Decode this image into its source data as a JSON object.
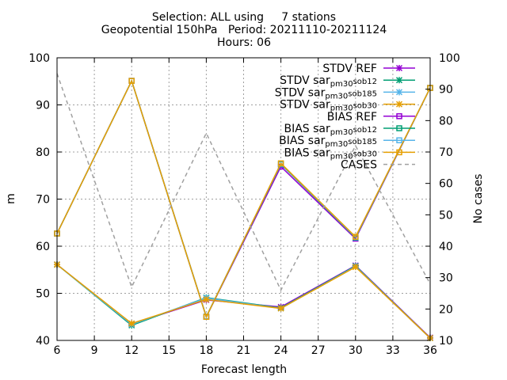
{
  "chart_data": {
    "type": "line",
    "title_lines": [
      "Selection: ALL using     7 stations",
      "Geopotential 150hPa   Period: 20211110-20211124",
      "Hours: 06"
    ],
    "xlabel": "Forecast length",
    "ylabel": "m",
    "y2label": "No cases",
    "x": [
      6,
      12,
      18,
      24,
      30,
      36
    ],
    "xticks": [
      6,
      9,
      12,
      15,
      18,
      21,
      24,
      27,
      30,
      33,
      36
    ],
    "xlim": [
      6,
      36
    ],
    "ylim": [
      40,
      100
    ],
    "yticks": [
      40,
      50,
      60,
      70,
      80,
      90,
      100
    ],
    "y2lim": [
      10,
      100
    ],
    "y2ticks": [
      10,
      20,
      30,
      40,
      50,
      60,
      70,
      80,
      90,
      100
    ],
    "grid": true,
    "legend_position": "top-right",
    "series": [
      {
        "name": "STDV REF",
        "color": "#9400d3",
        "marker": "x",
        "dash": false,
        "axis": "y",
        "values": [
          56.1,
          43.5,
          48.6,
          47.1,
          55.9,
          40.6
        ]
      },
      {
        "name": "STDV sar_pm30_sob12",
        "color": "#009e73",
        "marker": "x",
        "dash": false,
        "axis": "y",
        "values": [
          56.1,
          43.2,
          49.1,
          46.9,
          55.8,
          40.5
        ]
      },
      {
        "name": "STDV sar_pm30_sob185",
        "color": "#56b4e9",
        "marker": "x",
        "dash": false,
        "axis": "y",
        "values": [
          56.1,
          43.4,
          49.0,
          46.8,
          55.7,
          40.5
        ]
      },
      {
        "name": "STDV sar_pm30_sob30",
        "color": "#e69f00",
        "marker": "x",
        "dash": false,
        "axis": "y",
        "values": [
          56.1,
          43.6,
          48.7,
          46.8,
          55.6,
          40.5
        ]
      },
      {
        "name": "BIAS REF",
        "color": "#9400d3",
        "marker": "square",
        "dash": false,
        "axis": "y",
        "values": [
          62.7,
          95.1,
          45.0,
          76.9,
          61.6,
          93.6
        ]
      },
      {
        "name": "BIAS sar_pm30_sob12",
        "color": "#009e73",
        "marker": "square",
        "dash": false,
        "axis": "y",
        "values": [
          62.7,
          95.1,
          45.0,
          77.4,
          61.8,
          93.6
        ]
      },
      {
        "name": "BIAS sar_pm30_sob185",
        "color": "#56b4e9",
        "marker": "square",
        "dash": false,
        "axis": "y",
        "values": [
          62.7,
          95.1,
          45.1,
          77.5,
          61.9,
          93.6
        ]
      },
      {
        "name": "BIAS sar_pm30_sob30",
        "color": "#e69f00",
        "marker": "square",
        "dash": false,
        "axis": "y",
        "values": [
          62.7,
          95.1,
          45.0,
          77.6,
          62.0,
          93.6
        ]
      },
      {
        "name": "CASES",
        "color": "#a0a0a0",
        "marker": "none",
        "dash": true,
        "axis": "y2",
        "values": [
          95,
          27,
          76,
          26,
          72,
          28
        ]
      }
    ]
  }
}
